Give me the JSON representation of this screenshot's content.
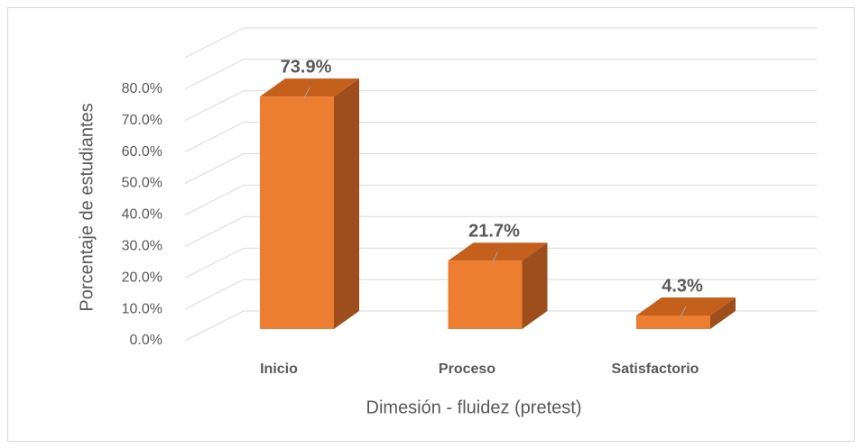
{
  "chart_data": {
    "type": "bar3d",
    "categories": [
      "Inicio",
      "Proceso",
      "Satisfactorio"
    ],
    "values": [
      73.9,
      21.7,
      4.3
    ],
    "value_labels": [
      "73.9%",
      "21.7%",
      "4.3%"
    ],
    "color": "#ed7d31",
    "x_label": "Dimesión - fluidez (pretest)",
    "y_label": "Porcentaje de estudiantes",
    "ylim": [
      0,
      90
    ],
    "yticks": [
      {
        "value": 0,
        "label": "0.0%"
      },
      {
        "value": 10,
        "label": "10.0%"
      },
      {
        "value": 20,
        "label": "20.0%"
      },
      {
        "value": 30,
        "label": "30.0%"
      },
      {
        "value": 40,
        "label": "40.0%"
      },
      {
        "value": 50,
        "label": "50.0%"
      },
      {
        "value": 60,
        "label": "60.0%"
      },
      {
        "value": 70,
        "label": "70.0%"
      },
      {
        "value": 80,
        "label": "80.0%"
      }
    ],
    "grid": true
  }
}
